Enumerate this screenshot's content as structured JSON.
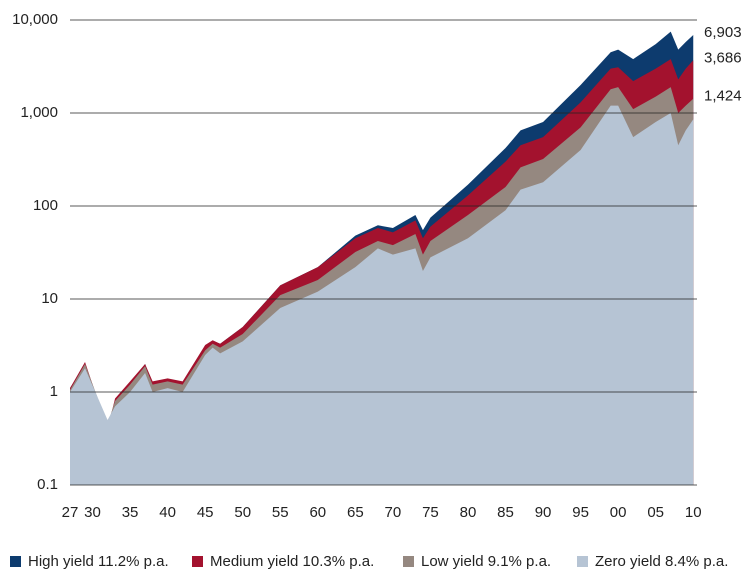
{
  "chart_data": {
    "type": "area",
    "log_scale": true,
    "grid": true,
    "legend": "bottom",
    "x": [
      1927,
      1929,
      1932,
      1933,
      1935,
      1937,
      1938,
      1940,
      1942,
      1945,
      1946,
      1947,
      1950,
      1955,
      1960,
      1965,
      1968,
      1970,
      1973,
      1974,
      1975,
      1980,
      1985,
      1987,
      1990,
      1995,
      1999,
      2000,
      2002,
      2005,
      2007,
      2008,
      2009,
      2010
    ],
    "xlim": [
      1927,
      2010.5
    ],
    "xticks": [
      {
        "value": 1927,
        "label": "27"
      },
      {
        "value": 1930,
        "label": "30"
      },
      {
        "value": 1935,
        "label": "35"
      },
      {
        "value": 1940,
        "label": "40"
      },
      {
        "value": 1945,
        "label": "45"
      },
      {
        "value": 1950,
        "label": "50"
      },
      {
        "value": 1955,
        "label": "55"
      },
      {
        "value": 1960,
        "label": "60"
      },
      {
        "value": 1965,
        "label": "65"
      },
      {
        "value": 1970,
        "label": "70"
      },
      {
        "value": 1975,
        "label": "75"
      },
      {
        "value": 1980,
        "label": "80"
      },
      {
        "value": 1985,
        "label": "85"
      },
      {
        "value": 1990,
        "label": "90"
      },
      {
        "value": 1995,
        "label": "95"
      },
      {
        "value": 2000,
        "label": "00"
      },
      {
        "value": 2005,
        "label": "05"
      },
      {
        "value": 2010,
        "label": "10"
      }
    ],
    "ylim": [
      0.1,
      10000
    ],
    "yticks": [
      0.1,
      1,
      10,
      100,
      {
        "value": 1000,
        "label": "1,000"
      },
      {
        "value": 10000,
        "label": "10,000"
      }
    ],
    "series": [
      {
        "name": "High yield 11.2% p.a.",
        "color": "#0d3b6e",
        "values": [
          1.1,
          2.0,
          0.3,
          0.7,
          1.2,
          2.0,
          1.2,
          1.3,
          1.1,
          3.0,
          3.5,
          3.3,
          5,
          14,
          22,
          48,
          62,
          58,
          80,
          55,
          75,
          170,
          420,
          650,
          800,
          2000,
          4500,
          4800,
          3800,
          5500,
          7500,
          4800,
          5800,
          6903
        ],
        "value_labels": [
          null,
          null,
          null,
          null,
          null,
          null,
          null,
          null,
          null,
          null,
          null,
          null,
          null,
          null,
          null,
          null,
          null,
          null,
          null,
          null,
          null,
          null,
          null,
          null,
          null,
          null,
          null,
          null,
          null,
          null,
          null,
          null,
          null,
          "6,903"
        ]
      },
      {
        "name": "Medium yield 10.3% p.a.",
        "color": "#a3122e",
        "values": [
          1.1,
          2.1,
          0.4,
          0.85,
          1.3,
          2.0,
          1.3,
          1.4,
          1.3,
          3.2,
          3.6,
          3.3,
          5,
          14,
          22,
          45,
          58,
          52,
          70,
          45,
          60,
          130,
          300,
          450,
          550,
          1300,
          3000,
          3100,
          2200,
          3000,
          3800,
          2300,
          3000,
          3686
        ],
        "value_labels": [
          null,
          null,
          null,
          null,
          null,
          null,
          null,
          null,
          null,
          null,
          null,
          null,
          null,
          null,
          null,
          null,
          null,
          null,
          null,
          null,
          null,
          null,
          null,
          null,
          null,
          null,
          null,
          null,
          null,
          null,
          null,
          null,
          null,
          "3,686"
        ]
      },
      {
        "name": "Low yield 9.1% p.a.",
        "color": "#958880",
        "values": [
          1.05,
          2.0,
          0.45,
          0.8,
          1.2,
          1.9,
          1.2,
          1.3,
          1.2,
          2.8,
          3.3,
          3.0,
          4.2,
          11,
          16,
          32,
          42,
          38,
          50,
          30,
          42,
          80,
          160,
          260,
          320,
          700,
          1800,
          1900,
          1100,
          1500,
          1900,
          1000,
          1200,
          1424
        ],
        "value_labels": [
          null,
          null,
          null,
          null,
          null,
          null,
          null,
          null,
          null,
          null,
          null,
          null,
          null,
          null,
          null,
          null,
          null,
          null,
          null,
          null,
          null,
          null,
          null,
          null,
          null,
          null,
          null,
          null,
          null,
          null,
          null,
          null,
          null,
          "1,424"
        ]
      },
      {
        "name": "Zero yield  8.4% p.a.",
        "color": "#b6c4d4",
        "values": [
          1.0,
          1.8,
          0.5,
          0.7,
          1.0,
          1.6,
          1.0,
          1.1,
          1.0,
          2.5,
          3.0,
          2.6,
          3.5,
          8,
          12,
          22,
          35,
          30,
          35,
          20,
          28,
          45,
          90,
          150,
          180,
          400,
          1200,
          1200,
          550,
          800,
          1000,
          450,
          650,
          853
        ]
      }
    ]
  }
}
